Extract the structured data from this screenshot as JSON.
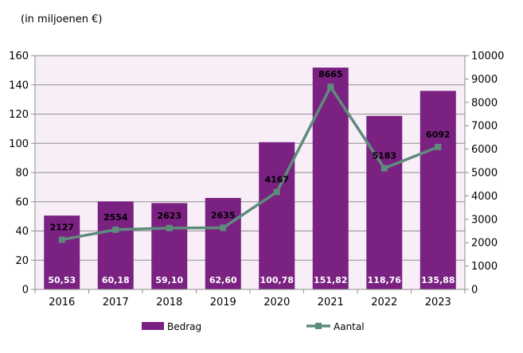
{
  "chart_data": {
    "type": "bar+line",
    "unit_label": "(in miljoenen €)",
    "categories": [
      "2016",
      "2017",
      "2018",
      "2019",
      "2020",
      "2021",
      "2022",
      "2023"
    ],
    "series": [
      {
        "name": "Bedrag",
        "type": "bar",
        "axis": "left",
        "values": [
          50.53,
          60.18,
          59.1,
          62.6,
          100.78,
          151.82,
          118.76,
          135.88
        ],
        "labels": [
          "50,53",
          "60,18",
          "59,10",
          "62,60",
          "100,78",
          "151,82",
          "118,76",
          "135,88"
        ]
      },
      {
        "name": "Aantal",
        "type": "line",
        "axis": "right",
        "values": [
          2127,
          2554,
          2623,
          2635,
          4167,
          8665,
          5183,
          6092
        ],
        "labels": [
          "2127",
          "2554",
          "2623",
          "2635",
          "4167",
          "8665",
          "5183",
          "6092"
        ]
      }
    ],
    "y_left": {
      "min": 0,
      "max": 160,
      "step": 20,
      "ticks": [
        "0",
        "20",
        "40",
        "60",
        "80",
        "100",
        "120",
        "140",
        "160"
      ]
    },
    "y_right": {
      "min": 0,
      "max": 10000,
      "step": 1000,
      "ticks": [
        "0",
        "1000",
        "2000",
        "3000",
        "4000",
        "5000",
        "6000",
        "7000",
        "8000",
        "9000",
        "10000"
      ]
    },
    "legend_position": "bottom",
    "colors": {
      "bar": "#7a2182",
      "line": "#5e8c7c",
      "plot_background": "#f7eef7",
      "grid": "#8f8f8f"
    }
  }
}
